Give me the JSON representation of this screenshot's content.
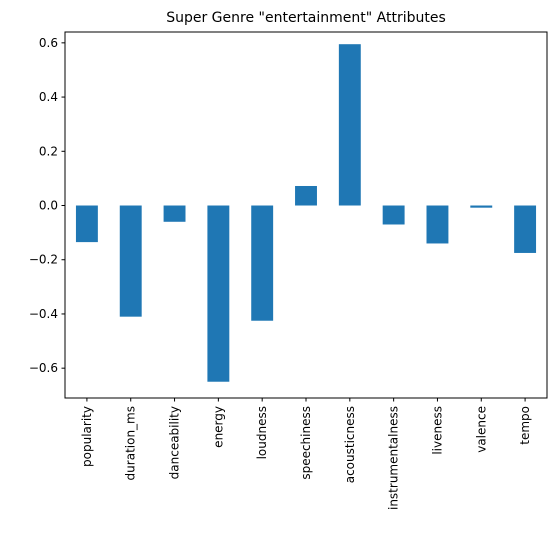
{
  "chart_data": {
    "type": "bar",
    "title": "Super Genre \"entertainment\" Attributes",
    "xlabel": "",
    "ylabel": "",
    "categories": [
      "popularity",
      "duration_ms",
      "danceability",
      "energy",
      "loudness",
      "speechiness",
      "acousticness",
      "instrumentalness",
      "liveness",
      "valence",
      "tempo"
    ],
    "values": [
      -0.135,
      -0.41,
      -0.06,
      -0.65,
      -0.425,
      0.072,
      0.595,
      -0.07,
      -0.14,
      -0.008,
      -0.175
    ],
    "ylim": [
      -0.71,
      0.64
    ],
    "yticks": [
      -0.6,
      -0.4,
      -0.2,
      0.0,
      0.2,
      0.4,
      0.6
    ],
    "ytick_labels": [
      "−0.6",
      "−0.4",
      "−0.2",
      "0.0",
      "0.2",
      "0.4",
      "0.6"
    ],
    "bar_color": "#1f77b4",
    "grid": false,
    "legend": "none"
  }
}
